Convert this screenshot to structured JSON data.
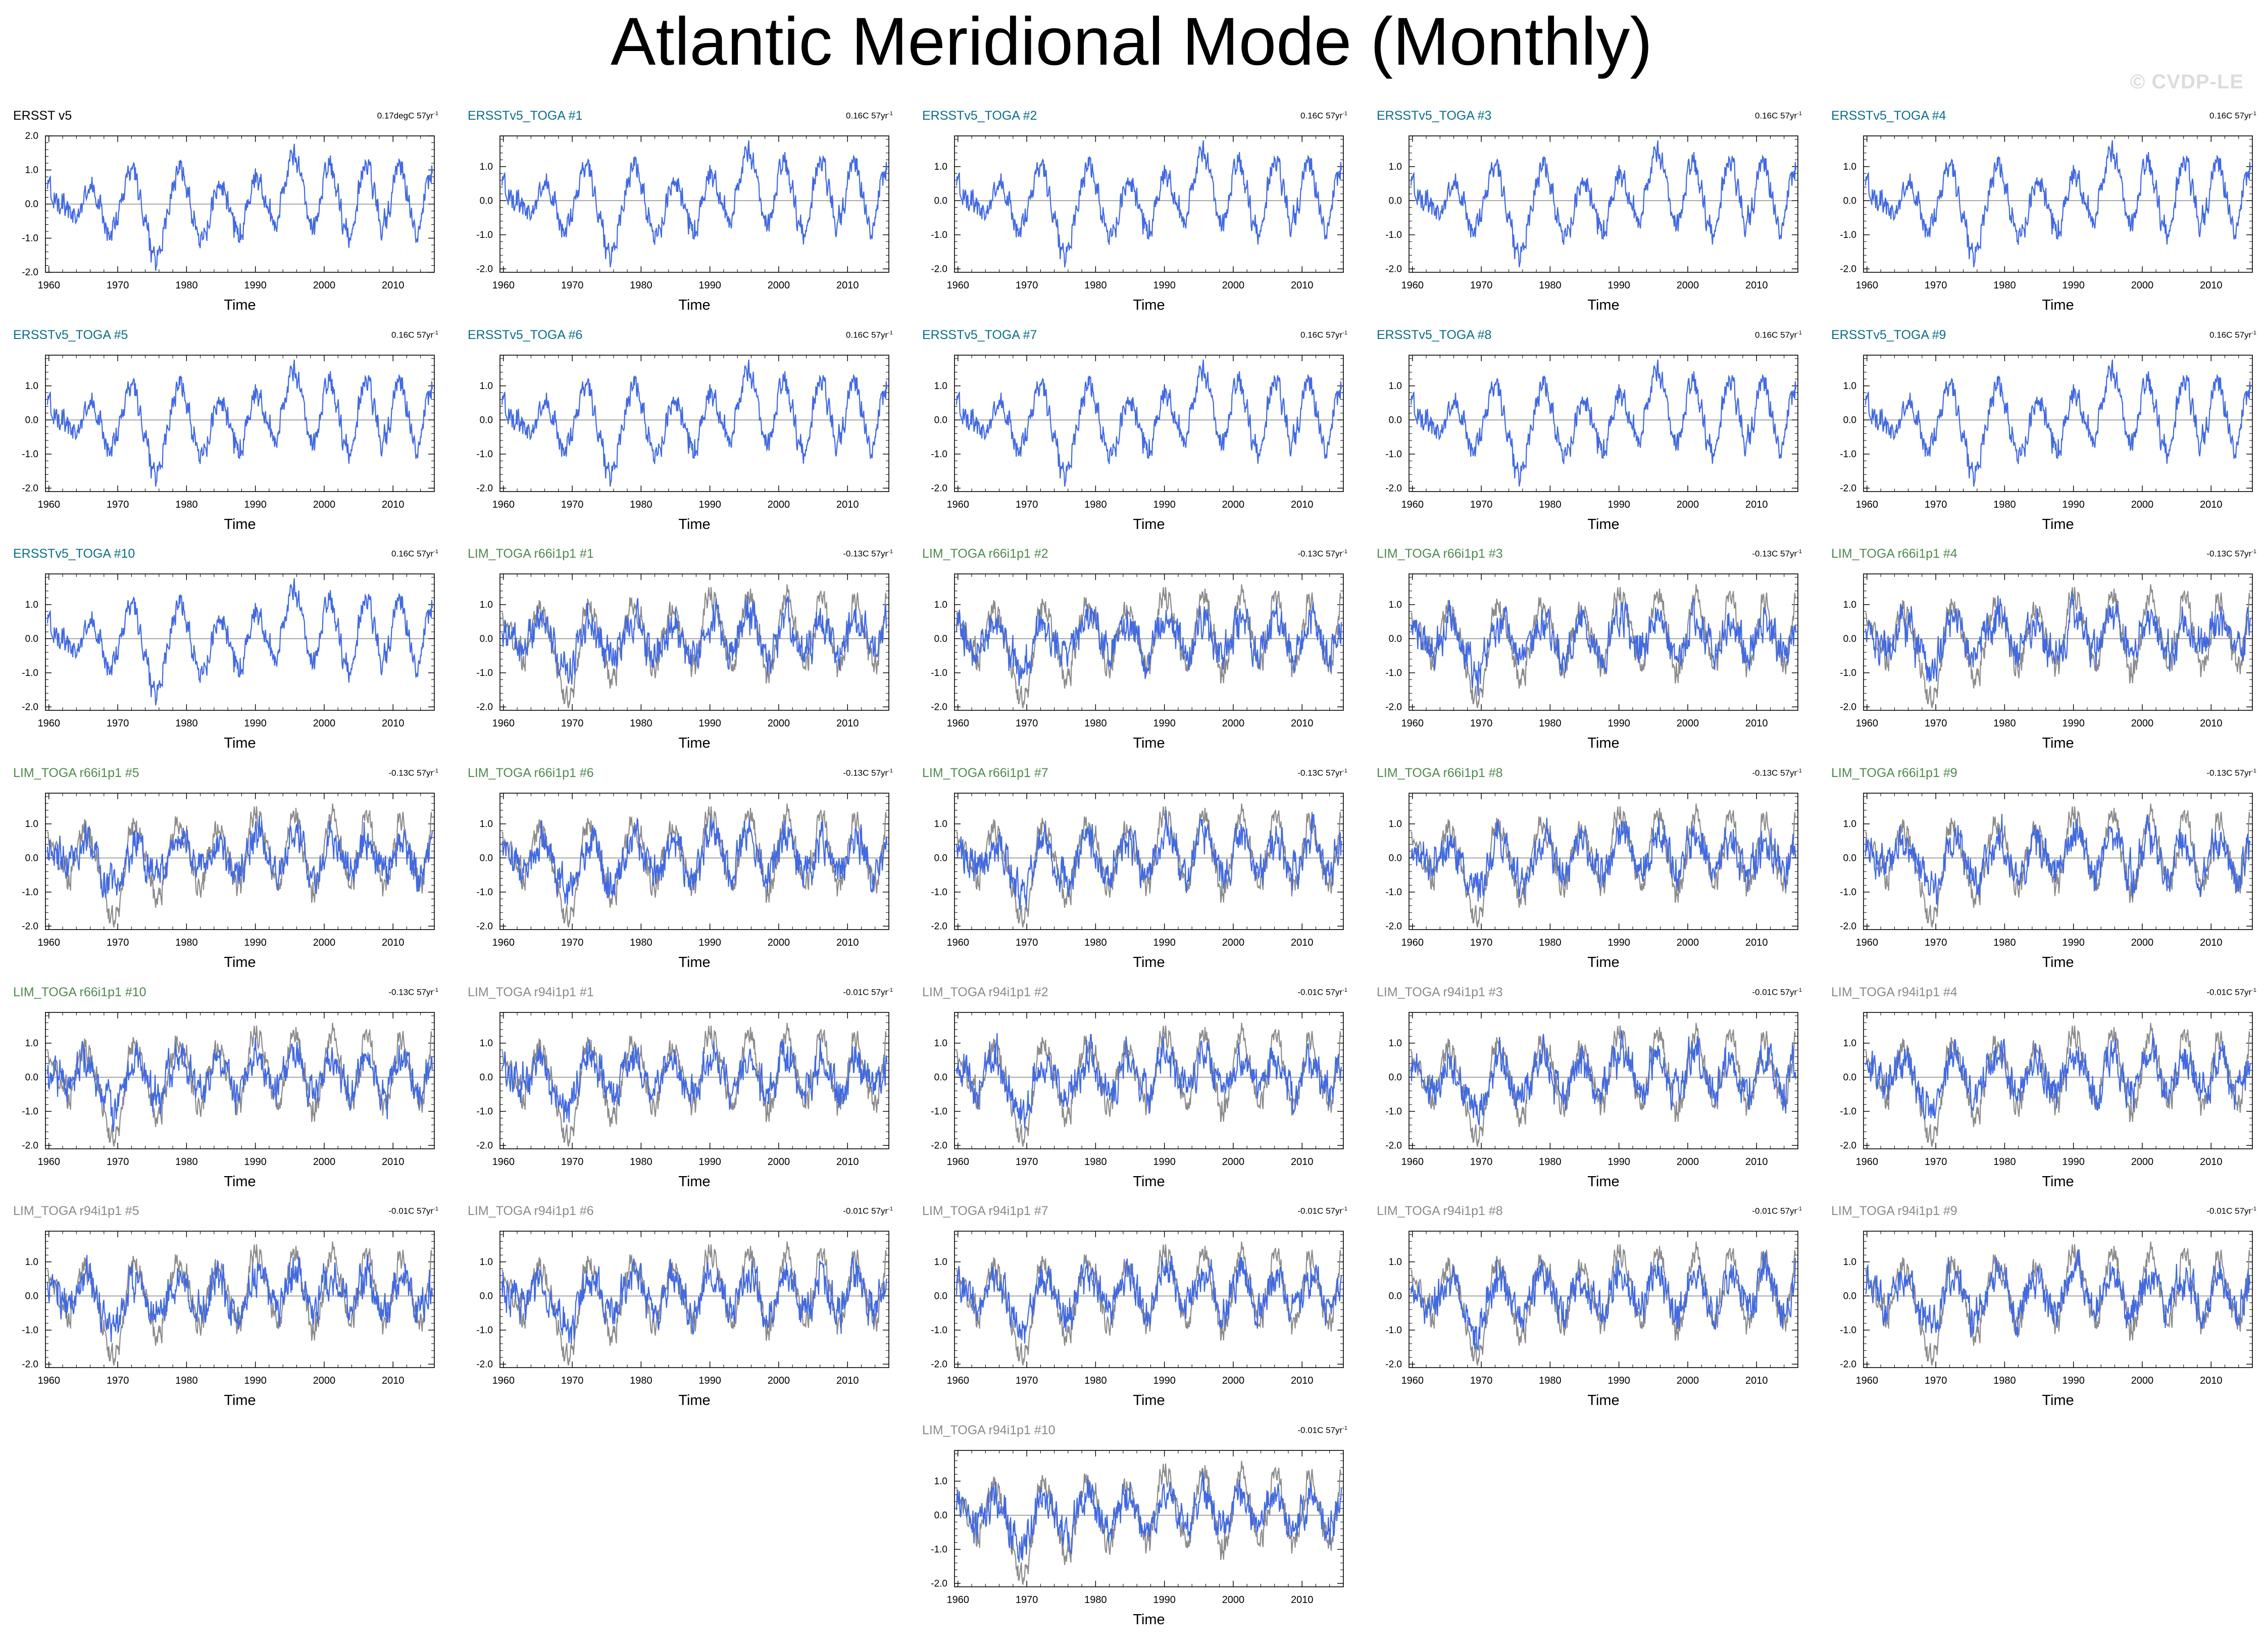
{
  "page": {
    "title": "Atlantic Meridional Mode (Monthly)",
    "watermark": "© CVDP-LE"
  },
  "style": {
    "obs_line_color": "#4169e1",
    "ref_line_color": "#8c8c8c",
    "title_color_obs": "#000000",
    "title_color_toga": "#0a6e8a",
    "title_color_lim66": "#4e8a4e",
    "title_color_lim94": "#8a8a8a"
  },
  "chart_data": {
    "type": "line",
    "layout_note": "6 rows x 5 columns plus one centered panel",
    "x_axis": {
      "label": "Time",
      "range": [
        1959.5,
        2016
      ],
      "ticks": [
        "1960",
        "1970",
        "1980",
        "1990",
        "2000",
        "2010"
      ]
    },
    "y_axis": {
      "ticks": [
        "2.0",
        "1.0",
        "0.0",
        "-1.0",
        "-2.0"
      ],
      "range_first_panel": [
        -2.0,
        2.0
      ],
      "range_other_panels": [
        -2.1,
        1.9
      ]
    },
    "panels": [
      {
        "title": "ERSST v5",
        "trend": "0.17degC 57yr",
        "group": "obs",
        "seed": 101,
        "overlay": false
      },
      {
        "title": "ERSSTv5_TOGA #1",
        "trend": "0.16C 57yr",
        "group": "toga",
        "seed": 101,
        "overlay": false
      },
      {
        "title": "ERSSTv5_TOGA #2",
        "trend": "0.16C 57yr",
        "group": "toga",
        "seed": 101,
        "overlay": false
      },
      {
        "title": "ERSSTv5_TOGA #3",
        "trend": "0.16C 57yr",
        "group": "toga",
        "seed": 101,
        "overlay": false
      },
      {
        "title": "ERSSTv5_TOGA #4",
        "trend": "0.16C 57yr",
        "group": "toga",
        "seed": 101,
        "overlay": false
      },
      {
        "title": "ERSSTv5_TOGA #5",
        "trend": "0.16C 57yr",
        "group": "toga",
        "seed": 101,
        "overlay": false
      },
      {
        "title": "ERSSTv5_TOGA #6",
        "trend": "0.16C 57yr",
        "group": "toga",
        "seed": 101,
        "overlay": false
      },
      {
        "title": "ERSSTv5_TOGA #7",
        "trend": "0.16C 57yr",
        "group": "toga",
        "seed": 101,
        "overlay": false
      },
      {
        "title": "ERSSTv5_TOGA #8",
        "trend": "0.16C 57yr",
        "group": "toga",
        "seed": 101,
        "overlay": false
      },
      {
        "title": "ERSSTv5_TOGA #9",
        "trend": "0.16C 57yr",
        "group": "toga",
        "seed": 101,
        "overlay": false
      },
      {
        "title": "ERSSTv5_TOGA #10",
        "trend": "0.16C 57yr",
        "group": "toga",
        "seed": 101,
        "overlay": false
      },
      {
        "title": "LIM_TOGA r66i1p1 #1",
        "trend": "-0.13C 57yr",
        "group": "lim66",
        "seed": 211,
        "overlay": true
      },
      {
        "title": "LIM_TOGA r66i1p1 #2",
        "trend": "-0.13C 57yr",
        "group": "lim66",
        "seed": 212,
        "overlay": true
      },
      {
        "title": "LIM_TOGA r66i1p1 #3",
        "trend": "-0.13C 57yr",
        "group": "lim66",
        "seed": 213,
        "overlay": true
      },
      {
        "title": "LIM_TOGA r66i1p1 #4",
        "trend": "-0.13C 57yr",
        "group": "lim66",
        "seed": 214,
        "overlay": true
      },
      {
        "title": "LIM_TOGA r66i1p1 #5",
        "trend": "-0.13C 57yr",
        "group": "lim66",
        "seed": 215,
        "overlay": true
      },
      {
        "title": "LIM_TOGA r66i1p1 #6",
        "trend": "-0.13C 57yr",
        "group": "lim66",
        "seed": 216,
        "overlay": true
      },
      {
        "title": "LIM_TOGA r66i1p1 #7",
        "trend": "-0.13C 57yr",
        "group": "lim66",
        "seed": 217,
        "overlay": true
      },
      {
        "title": "LIM_TOGA r66i1p1 #8",
        "trend": "-0.13C 57yr",
        "group": "lim66",
        "seed": 218,
        "overlay": true
      },
      {
        "title": "LIM_TOGA r66i1p1 #9",
        "trend": "-0.13C 57yr",
        "group": "lim66",
        "seed": 219,
        "overlay": true
      },
      {
        "title": "LIM_TOGA r66i1p1 #10",
        "trend": "-0.13C 57yr",
        "group": "lim66",
        "seed": 220,
        "overlay": true
      },
      {
        "title": "LIM_TOGA r94i1p1 #1",
        "trend": "-0.01C 57yr",
        "group": "lim94",
        "seed": 311,
        "overlay": true
      },
      {
        "title": "LIM_TOGA r94i1p1 #2",
        "trend": "-0.01C 57yr",
        "group": "lim94",
        "seed": 312,
        "overlay": true
      },
      {
        "title": "LIM_TOGA r94i1p1 #3",
        "trend": "-0.01C 57yr",
        "group": "lim94",
        "seed": 313,
        "overlay": true
      },
      {
        "title": "LIM_TOGA r94i1p1 #4",
        "trend": "-0.01C 57yr",
        "group": "lim94",
        "seed": 314,
        "overlay": true
      },
      {
        "title": "LIM_TOGA r94i1p1 #5",
        "trend": "-0.01C 57yr",
        "group": "lim94",
        "seed": 315,
        "overlay": true
      },
      {
        "title": "LIM_TOGA r94i1p1 #6",
        "trend": "-0.01C 57yr",
        "group": "lim94",
        "seed": 316,
        "overlay": true
      },
      {
        "title": "LIM_TOGA r94i1p1 #7",
        "trend": "-0.01C 57yr",
        "group": "lim94",
        "seed": 317,
        "overlay": true
      },
      {
        "title": "LIM_TOGA r94i1p1 #8",
        "trend": "-0.01C 57yr",
        "group": "lim94",
        "seed": 318,
        "overlay": true
      },
      {
        "title": "LIM_TOGA r94i1p1 #9",
        "trend": "-0.01C 57yr",
        "group": "lim94",
        "seed": 319,
        "overlay": true
      },
      {
        "title": "LIM_TOGA r94i1p1 #10",
        "trend": "-0.01C 57yr",
        "group": "lim94",
        "seed": 320,
        "overlay": true
      }
    ],
    "series": [
      {
        "key": "observed",
        "values": [
          0.59,
          0.35,
          0.18,
          0.16,
          0.27,
          -0.04,
          -0.25,
          -0.44,
          -0.41,
          -0.29,
          -0.12,
          0.12,
          0.42,
          0.56,
          0.41,
          0.18,
          -0.05,
          -0.35,
          -0.77,
          -0.95,
          -0.73,
          -0.4,
          -0.06,
          0.35,
          0.64,
          0.98,
          1.18,
          0.83,
          0.27,
          -0.26,
          -0.62,
          -0.95,
          -1.34,
          -1.73,
          -1.45,
          -0.98,
          -0.38,
          0.12,
          0.48,
          0.83,
          1.05,
          0.96,
          0.67,
          0.28,
          -0.13,
          -0.47,
          -0.86,
          -1.05,
          -0.98,
          -0.66,
          -0.17,
          0.23,
          0.48,
          0.56,
          0.39,
          0.05,
          -0.31,
          -0.65,
          -0.98,
          -0.89,
          -0.48,
          0.03,
          0.52,
          0.78,
          0.77,
          0.55,
          0.21,
          -0.12,
          -0.35,
          -0.52,
          -0.37,
          -0.02,
          0.45,
          0.94,
          1.36,
          1.58,
          1.32,
          0.82,
          0.28,
          -0.24,
          -0.58,
          -0.67,
          -0.44,
          0.05,
          0.63,
          1.12,
          1.22,
          0.94,
          0.45,
          -0.12,
          -0.62,
          -0.86,
          -0.87,
          -0.52,
          0.04,
          0.65,
          1.07,
          1.26,
          1.03,
          0.55,
          0.02,
          -0.43,
          -0.66,
          -0.55,
          -0.12,
          0.44,
          0.92,
          1.16,
          0.98,
          0.53,
          0.02,
          -0.41,
          -0.67,
          -0.63,
          -0.24,
          0.35,
          0.85,
          1.09
        ]
      },
      {
        "key": "shared_gray_reference",
        "values": [
          0.62,
          0.44,
          0.28,
          0.05,
          -0.18,
          -0.36,
          -0.5,
          -0.41,
          -0.16,
          0.18,
          0.54,
          0.79,
          0.83,
          0.66,
          0.32,
          -0.12,
          -0.58,
          -0.98,
          -1.32,
          -1.65,
          -1.85,
          -1.62,
          -1.15,
          -0.55,
          0.06,
          0.55,
          0.82,
          0.9,
          0.76,
          0.42,
          -0.03,
          -0.5,
          -0.87,
          -1.06,
          -1.02,
          -0.75,
          -0.31,
          0.19,
          0.63,
          0.92,
          1.04,
          0.94,
          0.61,
          0.18,
          -0.27,
          -0.65,
          -0.86,
          -0.79,
          -0.46,
          0.04,
          0.52,
          0.84,
          0.93,
          0.78,
          0.39,
          -0.08,
          -0.54,
          -0.84,
          -0.91,
          -0.66,
          -0.19,
          0.36,
          0.86,
          1.18,
          1.3,
          1.15,
          0.74,
          0.22,
          -0.28,
          -0.66,
          -0.76,
          -0.51,
          0.04,
          0.63,
          1.08,
          1.29,
          1.17,
          0.74,
          0.16,
          -0.42,
          -0.84,
          -0.97,
          -0.76,
          -0.26,
          0.33,
          0.88,
          1.16,
          1.13,
          0.81,
          0.33,
          -0.18,
          -0.57,
          -0.72,
          -0.55,
          -0.13,
          0.42,
          0.88,
          1.07,
          0.95,
          0.55,
          0.02,
          -0.48,
          -0.79,
          -0.8,
          -0.48,
          0.07,
          0.63,
          1.02,
          1.12,
          0.88,
          0.38,
          -0.19,
          -0.63,
          -0.84,
          -0.68,
          -0.2,
          0.41,
          0.92
        ]
      }
    ]
  }
}
